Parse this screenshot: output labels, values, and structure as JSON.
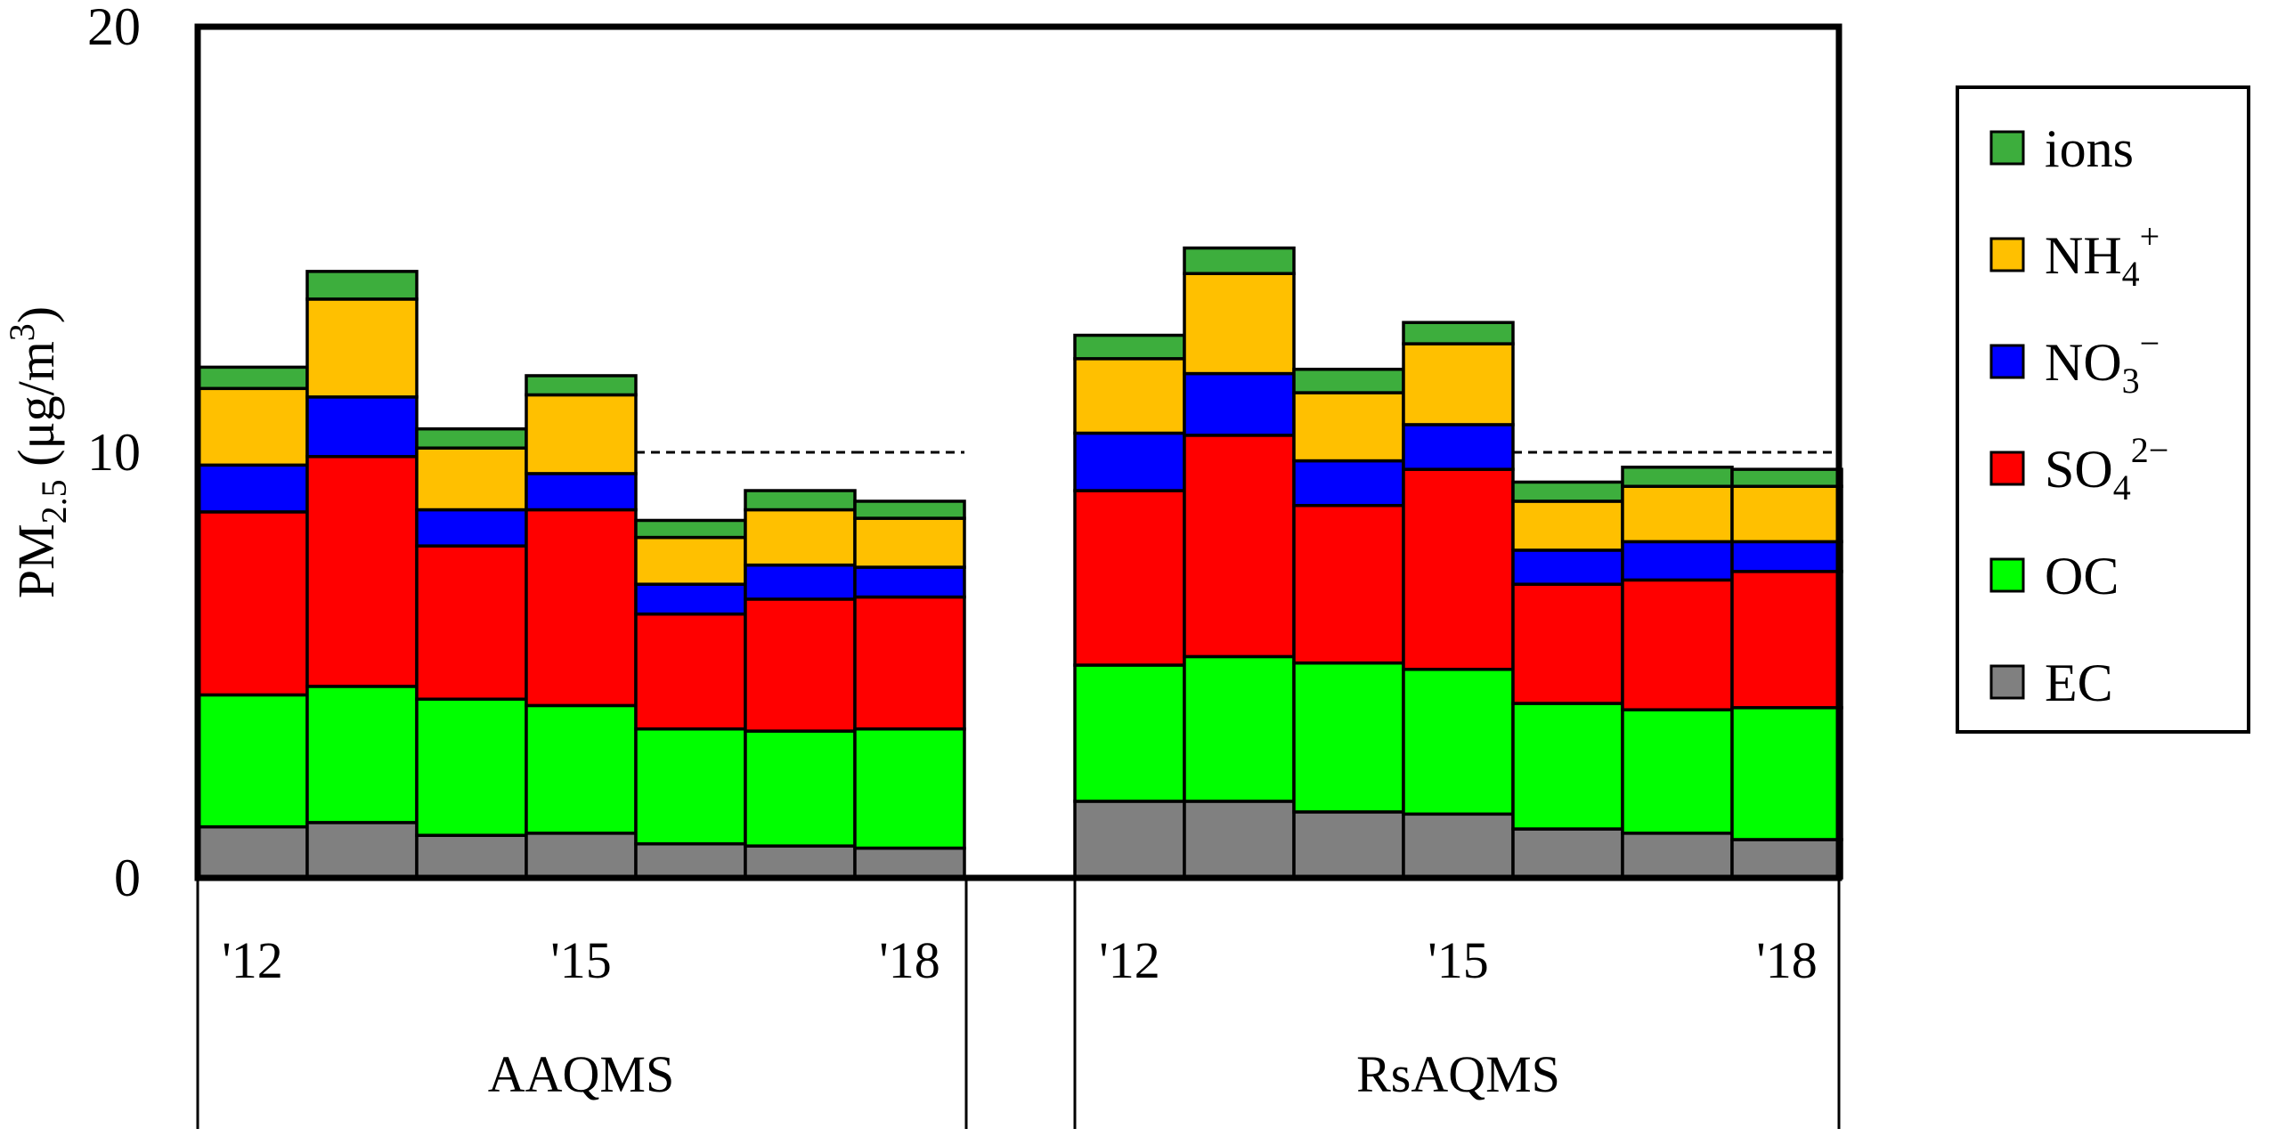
{
  "chart_data": {
    "type": "stacked-bar",
    "ylabel": {
      "main": "PM",
      "sub": "2.5",
      "unit_open": " (μg/m",
      "unit_sup": "3",
      "unit_close": ")"
    },
    "ylim": [
      0,
      20
    ],
    "yticks": [
      0,
      10,
      20
    ],
    "reference_line": {
      "value": 10,
      "style": "dashed"
    },
    "groups": [
      {
        "name": "AAQMS",
        "years": [
          "2012",
          "2013",
          "2014",
          "2015",
          "2016",
          "2017",
          "2018"
        ],
        "year_labels": [
          "'12",
          "",
          "",
          "'15",
          "",
          "",
          "'18"
        ]
      },
      {
        "name": "RsAQMS",
        "years": [
          "2012",
          "2013",
          "2014",
          "2015",
          "2016",
          "2017",
          "2018"
        ],
        "year_labels": [
          "'12",
          "",
          "",
          "'15",
          "",
          "",
          "'18"
        ]
      }
    ],
    "series": [
      {
        "key": "EC",
        "name": "EC",
        "color": "#808080",
        "values": [
          [
            1.2,
            1.3,
            1.0,
            1.05,
            0.8,
            0.75,
            0.7
          ],
          [
            1.8,
            1.8,
            1.55,
            1.5,
            1.15,
            1.05,
            0.9
          ]
        ]
      },
      {
        "key": "OC",
        "name": "OC",
        "color": "#00ff00",
        "values": [
          [
            3.1,
            3.2,
            3.2,
            3.0,
            2.7,
            2.7,
            2.8
          ],
          [
            3.2,
            3.4,
            3.5,
            3.4,
            2.95,
            2.9,
            3.1
          ]
        ]
      },
      {
        "key": "SO4",
        "name": "SO4 2-",
        "color": "#ff0000",
        "values": [
          [
            4.3,
            5.4,
            3.6,
            4.6,
            2.7,
            3.1,
            3.1
          ],
          [
            4.1,
            5.2,
            3.7,
            4.7,
            2.8,
            3.05,
            3.2
          ]
        ]
      },
      {
        "key": "NO3",
        "name": "NO3 -",
        "color": "#0000ff",
        "values": [
          [
            1.1,
            1.4,
            0.85,
            0.85,
            0.7,
            0.8,
            0.7
          ],
          [
            1.35,
            1.45,
            1.05,
            1.05,
            0.8,
            0.9,
            0.7
          ]
        ]
      },
      {
        "key": "NH4",
        "name": "NH4 +",
        "color": "#ffc000",
        "values": [
          [
            1.8,
            2.3,
            1.45,
            1.85,
            1.1,
            1.3,
            1.15
          ],
          [
            1.75,
            2.35,
            1.6,
            1.9,
            1.15,
            1.3,
            1.3
          ]
        ]
      },
      {
        "key": "ions",
        "name": "ions",
        "color": "#3dae3d",
        "values": [
          [
            0.5,
            0.65,
            0.45,
            0.45,
            0.4,
            0.45,
            0.4
          ],
          [
            0.55,
            0.6,
            0.55,
            0.5,
            0.45,
            0.45,
            0.4
          ]
        ]
      }
    ],
    "legend": {
      "position": "right",
      "entries": [
        {
          "key": "ions",
          "label": "ions",
          "sub": "",
          "sup": ""
        },
        {
          "key": "NH4",
          "label": "NH",
          "sub": "4",
          "sup": "+"
        },
        {
          "key": "NO3",
          "label": "NO",
          "sub": "3",
          "sup": "−"
        },
        {
          "key": "SO4",
          "label": "SO",
          "sub": "4",
          "sup": "2−"
        },
        {
          "key": "OC",
          "label": "OC",
          "sub": "",
          "sup": ""
        },
        {
          "key": "EC",
          "label": "EC",
          "sub": "",
          "sup": ""
        }
      ]
    }
  }
}
